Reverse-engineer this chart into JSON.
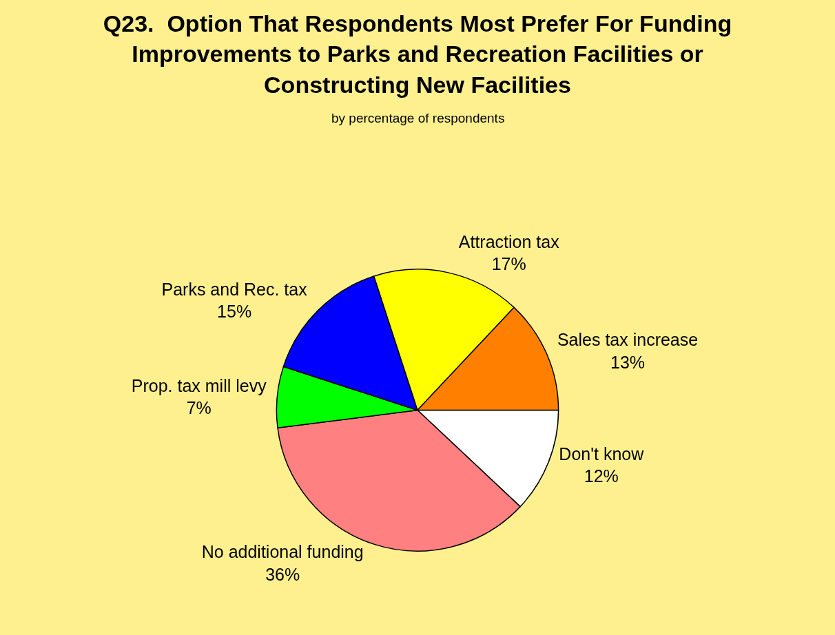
{
  "chart_data": {
    "type": "pie",
    "title": "Q23.  Option That Respondents Most Prefer For Funding Improvements to Parks and Recreation Facilities or Constructing New Facilities",
    "subtitle": "by percentage of respondents",
    "categories": [
      "Don't know",
      "No additional funding",
      "Prop. tax mill levy",
      "Parks and Rec. tax",
      "Attraction tax",
      "Sales tax increase"
    ],
    "values": [
      12,
      36,
      7,
      15,
      17,
      13
    ],
    "value_labels": [
      "12%",
      "36%",
      "7%",
      "15%",
      "17%",
      "13%"
    ],
    "colors": [
      "#ffffff",
      "#ff8080",
      "#00ff00",
      "#0000ff",
      "#ffff00",
      "#ff8000"
    ],
    "legend": false
  }
}
